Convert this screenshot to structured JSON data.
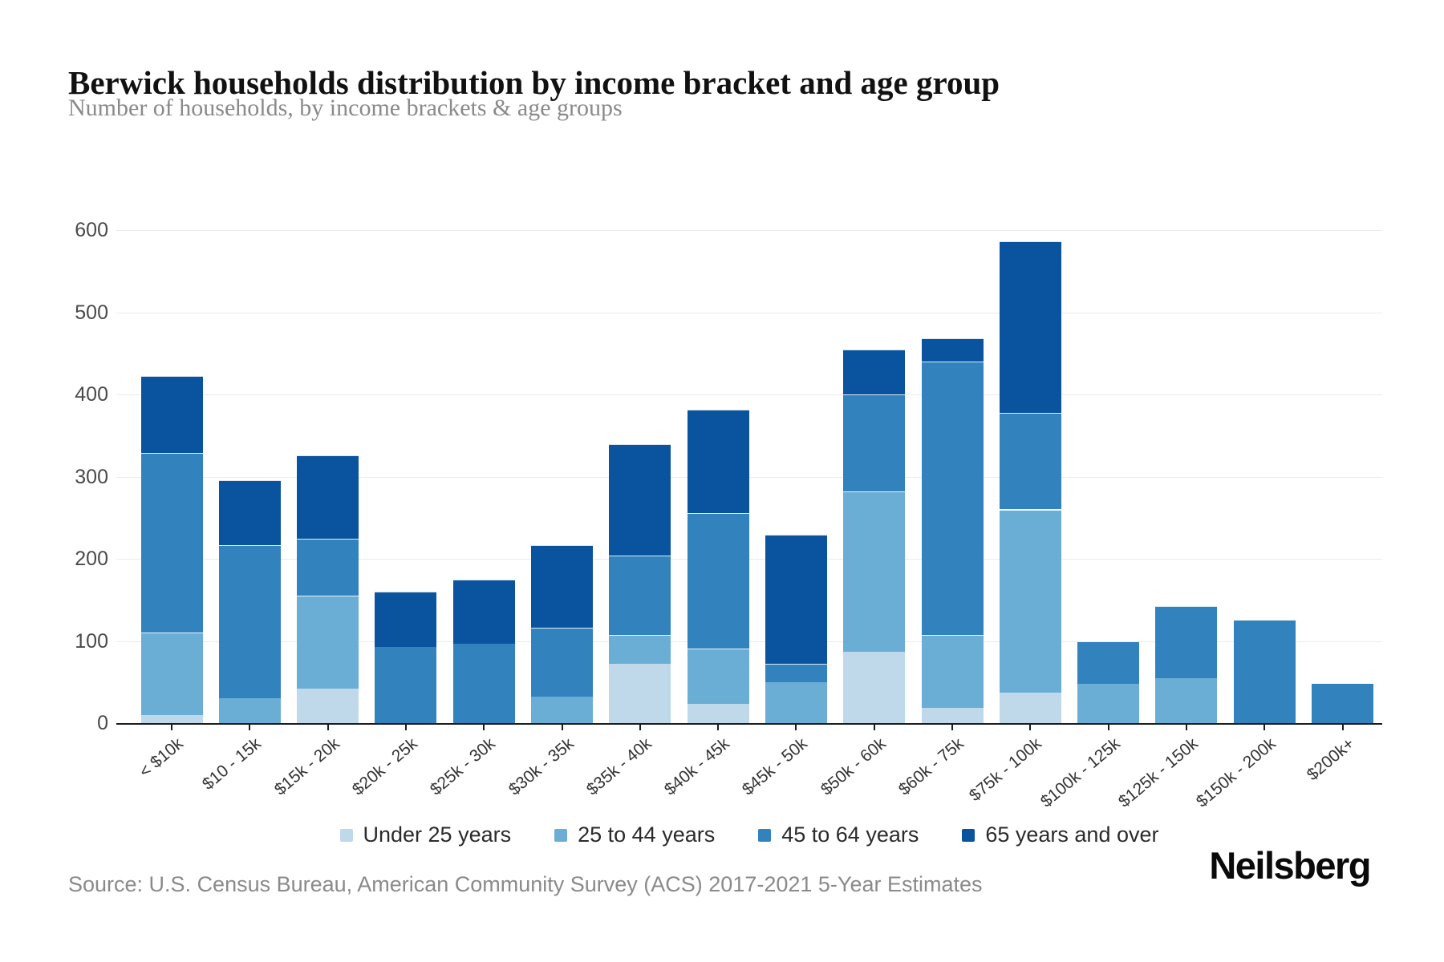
{
  "header": {
    "title": "Berwick households distribution by income bracket and age group",
    "subtitle": "Number of households, by income brackets & age groups"
  },
  "chart_data": {
    "type": "bar",
    "stacked": true,
    "title": "Berwick households distribution by income bracket and age group",
    "xlabel": "",
    "ylabel": "Number of households",
    "ylim": [
      0,
      600
    ],
    "yticks": [
      0,
      100,
      200,
      300,
      400,
      500,
      600
    ],
    "grid": true,
    "legend_position": "bottom",
    "categories": [
      "< $10k",
      "$10 - 15k",
      "$15k - 20k",
      "$20k - 25k",
      "$25k - 30k",
      "$30k - 35k",
      "$35k - 40k",
      "$40k - 45k",
      "$45k - 50k",
      "$50k - 60k",
      "$60k - 75k",
      "$75k - 100k",
      "$100k - 125k",
      "$125k - 150k",
      "$150k - 200k",
      "$200k+"
    ],
    "series": [
      {
        "name": "Under 25 years",
        "color": "#bfd8ea",
        "values": [
          10,
          0,
          42,
          0,
          0,
          0,
          72,
          23,
          0,
          87,
          19,
          37,
          0,
          0,
          0,
          0
        ]
      },
      {
        "name": "25 to 44 years",
        "color": "#6aaed6",
        "values": [
          100,
          30,
          113,
          0,
          0,
          32,
          35,
          68,
          50,
          195,
          88,
          223,
          48,
          55,
          0,
          0
        ]
      },
      {
        "name": "45 to 64 years",
        "color": "#3182bd",
        "values": [
          219,
          187,
          69,
          93,
          97,
          84,
          97,
          165,
          22,
          118,
          333,
          118,
          52,
          87,
          125,
          48
        ]
      },
      {
        "name": "65 years and over",
        "color": "#0a539e",
        "values": [
          93,
          79,
          102,
          67,
          78,
          101,
          136,
          125,
          157,
          55,
          28,
          208,
          0,
          0,
          0,
          0
        ]
      }
    ]
  },
  "footer": {
    "source": "Source: U.S. Census Bureau, American Community Survey (ACS) 2017-2021 5-Year Estimates",
    "brand": "Neilsberg"
  }
}
